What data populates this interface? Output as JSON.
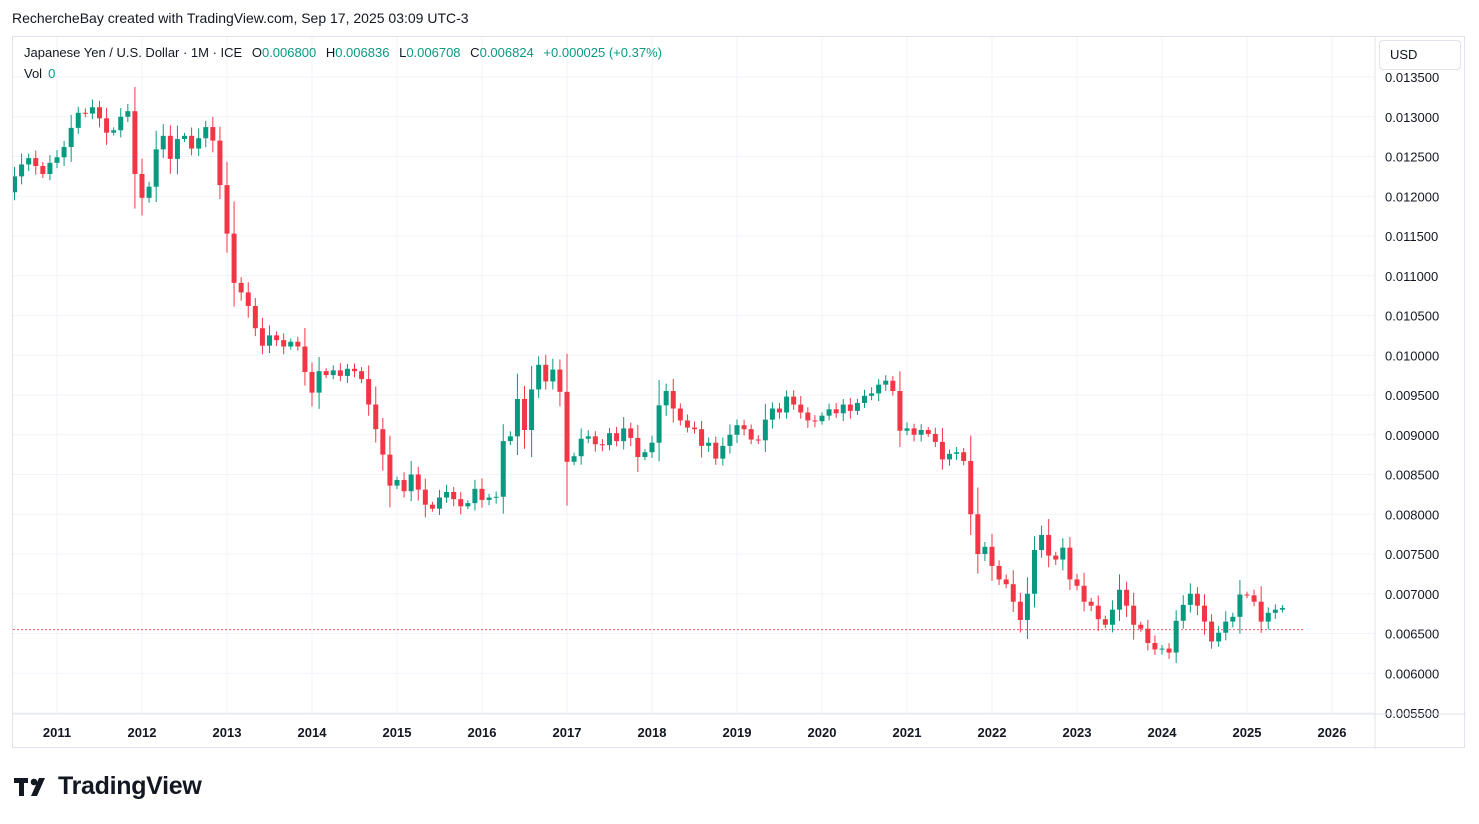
{
  "header": {
    "credit": "RechercheBay created with TradingView.com, Sep 17, 2025 03:09 UTC-3"
  },
  "legend": {
    "symbol": "Japanese Yen / U.S. Dollar · 1M · ICE",
    "o_label": "O",
    "o_value": "0.006800",
    "h_label": "H",
    "h_value": "0.006836",
    "l_label": "L",
    "l_value": "0.006708",
    "c_label": "C",
    "c_value": "0.006824",
    "change": "+0.000025 (+0.37%)",
    "vol_label": "Vol",
    "vol_value": "0"
  },
  "currency": "USD",
  "brand": {
    "name": "TradingView",
    "logo_icon": "tradingview-logo-icon"
  },
  "colors": {
    "up": "#089981",
    "down": "#f23645",
    "grid": "#f0f3fa",
    "text": "#131722"
  },
  "chart_data": {
    "type": "candlestick",
    "interval": "1M",
    "x_ticks": [
      "2011",
      "2012",
      "2013",
      "2014",
      "2015",
      "2016",
      "2017",
      "2018",
      "2019",
      "2020",
      "2021",
      "2022",
      "2023",
      "2024",
      "2025",
      "2026"
    ],
    "y_ticks": [
      "0.005500",
      "0.006000",
      "0.006500",
      "0.007000",
      "0.007500",
      "0.008000",
      "0.008500",
      "0.009000",
      "0.009500",
      "0.010000",
      "0.010500",
      "0.011000",
      "0.011500",
      "0.012000",
      "0.012500",
      "0.013000",
      "0.013500"
    ],
    "y_range": [
      0.0055,
      0.0135
    ],
    "x_range": [
      "2010-06",
      "2026-04"
    ],
    "last_price_line": 0.006548,
    "closes": [
      0.01205,
      0.01225,
      0.0124,
      0.01248,
      0.01238,
      0.01228,
      0.01242,
      0.01249,
      0.01262,
      0.01286,
      0.01305,
      0.01304,
      0.01312,
      0.01298,
      0.0128,
      0.01283,
      0.013,
      0.01307,
      0.01228,
      0.01198,
      0.01212,
      0.01259,
      0.01276,
      0.01247,
      0.01272,
      0.01276,
      0.0126,
      0.01273,
      0.01287,
      0.0127,
      0.01214,
      0.01153,
      0.01091,
      0.01079,
      0.01062,
      0.01034,
      0.01012,
      0.01025,
      0.01019,
      0.01011,
      0.01017,
      0.01011,
      0.00979,
      0.00953,
      0.0098,
      0.00975,
      0.00981,
      0.00974,
      0.00983,
      0.0098,
      0.0097,
      0.00938,
      0.00907,
      0.00875,
      0.00836,
      0.00843,
      0.00829,
      0.0085,
      0.00831,
      0.00812,
      0.00807,
      0.00821,
      0.00828,
      0.00819,
      0.0081,
      0.00814,
      0.00832,
      0.00818,
      0.00821,
      0.00822,
      0.00892,
      0.00898,
      0.00945,
      0.00906,
      0.00957,
      0.00988,
      0.00967,
      0.00982,
      0.00954,
      0.00866,
      0.00873,
      0.00895,
      0.00898,
      0.00888,
      0.00887,
      0.00902,
      0.00892,
      0.00908,
      0.00896,
      0.00872,
      0.00878,
      0.0089,
      0.00937,
      0.00955,
      0.00933,
      0.00918,
      0.00909,
      0.00907,
      0.00886,
      0.0089,
      0.0087,
      0.00886,
      0.009,
      0.00912,
      0.00907,
      0.00894,
      0.00893,
      0.00919,
      0.00933,
      0.00928,
      0.00948,
      0.00938,
      0.00928,
      0.00918,
      0.00917,
      0.00924,
      0.00932,
      0.00927,
      0.00938,
      0.0093,
      0.0094,
      0.00949,
      0.00952,
      0.00963,
      0.00968,
      0.00955,
      0.00905,
      0.00908,
      0.009,
      0.00906,
      0.00901,
      0.00891,
      0.00869,
      0.00876,
      0.00878,
      0.00867,
      0.008,
      0.0075,
      0.00759,
      0.00735,
      0.00718,
      0.00712,
      0.0069,
      0.00667,
      0.007,
      0.00755,
      0.00774,
      0.00748,
      0.00743,
      0.00758,
      0.00718,
      0.0071,
      0.0069,
      0.00685,
      0.00668,
      0.00661,
      0.0068,
      0.00705,
      0.00685,
      0.00661,
      0.00656,
      0.00638,
      0.0063,
      0.00631,
      0.00626,
      0.00666,
      0.00686,
      0.007,
      0.00685,
      0.00665,
      0.0064,
      0.00651,
      0.00665,
      0.00671,
      0.00699,
      0.00698,
      0.0069,
      0.00665,
      0.00676,
      0.0068,
      0.00682
    ]
  }
}
